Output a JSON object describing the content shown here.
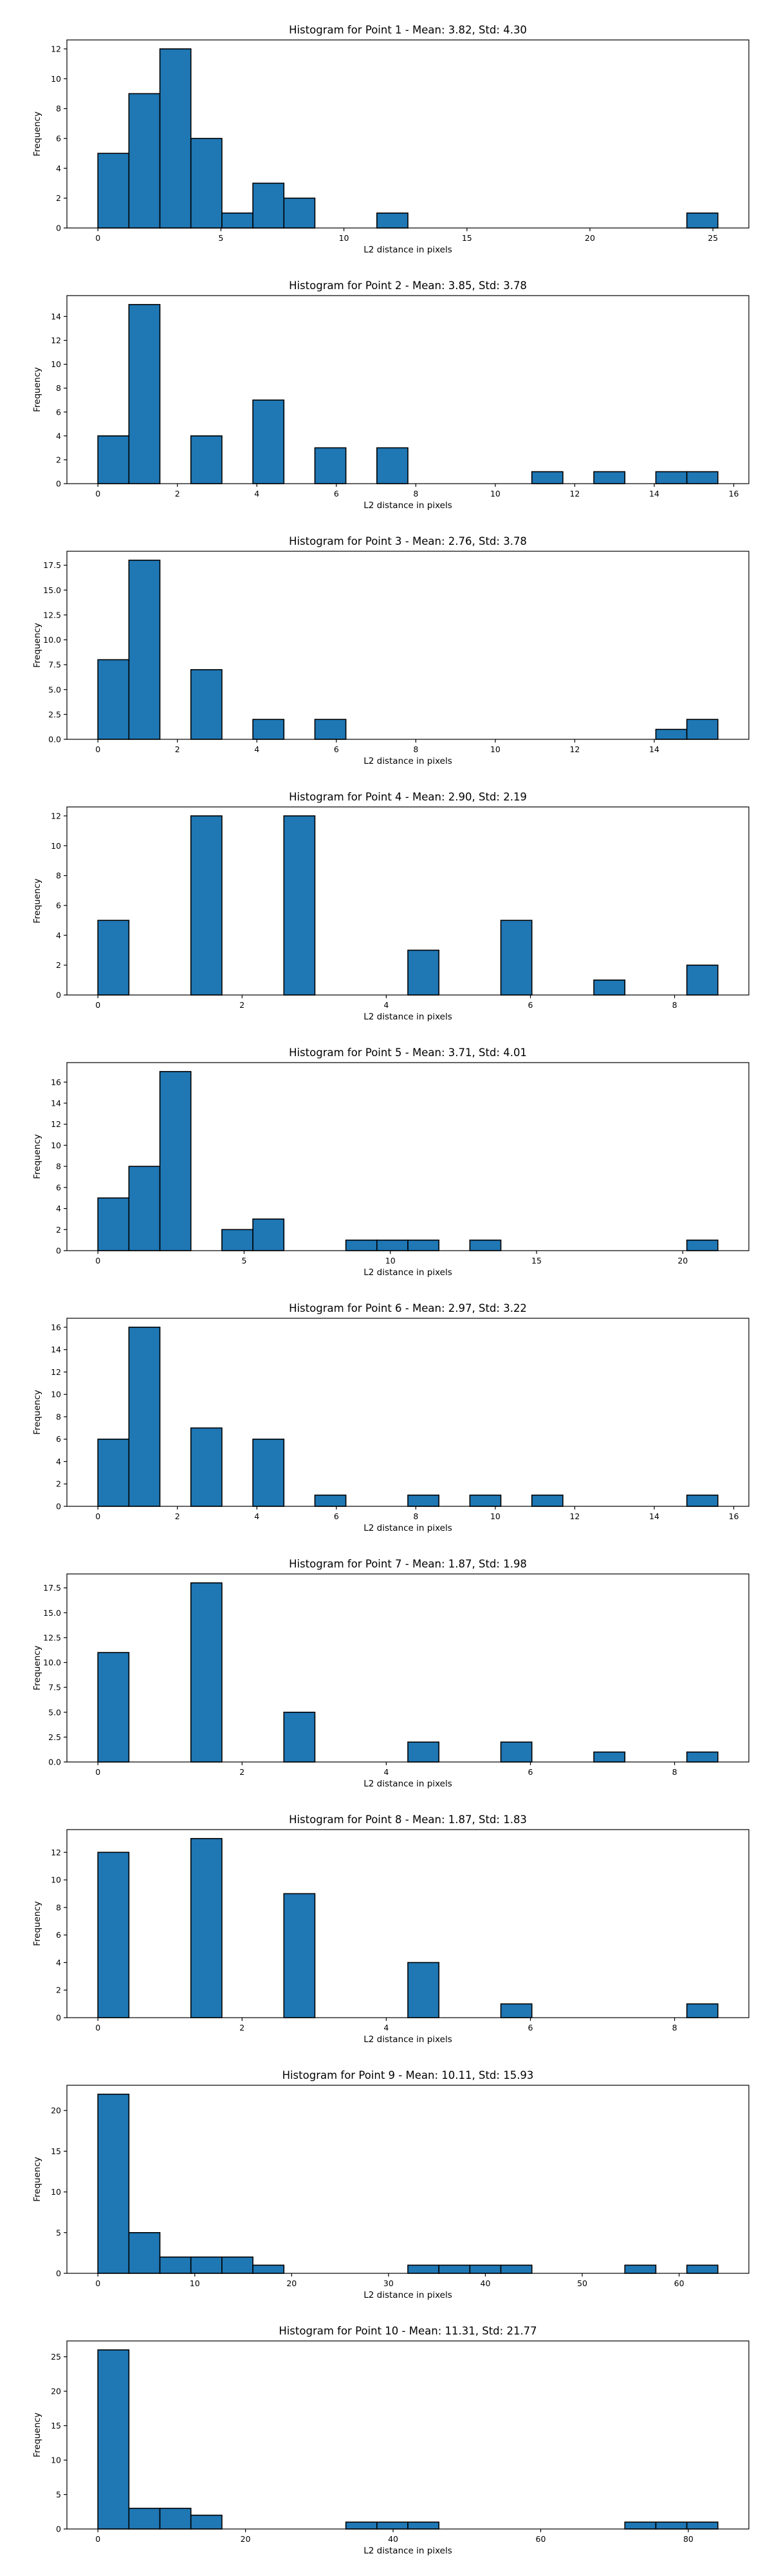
{
  "colors": {
    "bar": "#1f77b4",
    "edge": "#000000",
    "background": "#ffffff"
  },
  "chart_data": [
    {
      "type": "bar",
      "title": "Histogram for Point 1 - Mean: 3.82, Std: 4.30",
      "xlabel": "L2 distance in pixels",
      "ylabel": "Frequency",
      "bin_range": [
        0,
        25.2
      ],
      "bins": 20,
      "counts": [
        5,
        9,
        12,
        6,
        1,
        3,
        2,
        0,
        0,
        1,
        0,
        0,
        0,
        0,
        0,
        0,
        0,
        0,
        0,
        1
      ],
      "xlim": [
        -1.26,
        26.46
      ],
      "ylim": [
        0,
        12.6
      ],
      "xticks": [
        0,
        5,
        10,
        15,
        20,
        25
      ],
      "yticks": [
        0,
        2,
        4,
        6,
        8,
        10,
        12
      ],
      "grid": false
    },
    {
      "type": "bar",
      "title": "Histogram for Point 2 - Mean: 3.85, Std: 3.78",
      "xlabel": "L2 distance in pixels",
      "ylabel": "Frequency",
      "bin_range": [
        0,
        15.6
      ],
      "bins": 20,
      "counts": [
        4,
        15,
        0,
        4,
        0,
        7,
        0,
        3,
        0,
        3,
        0,
        0,
        0,
        0,
        1,
        0,
        1,
        0,
        1,
        1
      ],
      "xlim": [
        -0.78,
        16.38
      ],
      "ylim": [
        0,
        15.75
      ],
      "xticks": [
        0,
        2,
        4,
        6,
        8,
        10,
        12,
        14,
        16
      ],
      "yticks": [
        0,
        2,
        4,
        6,
        8,
        10,
        12,
        14
      ],
      "grid": false
    },
    {
      "type": "bar",
      "title": "Histogram for Point 3 - Mean: 2.76, Std: 3.78",
      "xlabel": "L2 distance in pixels",
      "ylabel": "Frequency",
      "bin_range": [
        0,
        15.6
      ],
      "bins": 20,
      "counts": [
        8,
        18,
        0,
        7,
        0,
        2,
        0,
        2,
        0,
        0,
        0,
        0,
        0,
        0,
        0,
        0,
        0,
        0,
        1,
        2
      ],
      "xlim": [
        -0.78,
        16.38
      ],
      "ylim": [
        0,
        18.9
      ],
      "xticks": [
        0,
        2,
        4,
        6,
        8,
        10,
        12,
        14
      ],
      "yticks": [
        0,
        2.5,
        5,
        7.5,
        10,
        12.5,
        15,
        17.5
      ],
      "ytick_labels": [
        "0.0",
        "2.5",
        "5.0",
        "7.5",
        "10.0",
        "12.5",
        "15.0",
        "17.5"
      ],
      "grid": false
    },
    {
      "type": "bar",
      "title": "Histogram for Point 4 - Mean: 2.90, Std: 2.19",
      "xlabel": "L2 distance in pixels",
      "ylabel": "Frequency",
      "bin_range": [
        0,
        8.6
      ],
      "bins": 20,
      "counts": [
        5,
        0,
        0,
        12,
        0,
        0,
        12,
        0,
        0,
        0,
        3,
        0,
        0,
        5,
        0,
        0,
        1,
        0,
        0,
        2
      ],
      "xlim": [
        -0.43,
        9.03
      ],
      "ylim": [
        0,
        12.6
      ],
      "xticks": [
        0,
        2,
        4,
        6,
        8
      ],
      "yticks": [
        0,
        2,
        4,
        6,
        8,
        10,
        12
      ],
      "grid": false
    },
    {
      "type": "bar",
      "title": "Histogram for Point 5 - Mean: 3.71, Std: 4.01",
      "xlabel": "L2 distance in pixels",
      "ylabel": "Frequency",
      "bin_range": [
        0,
        21.2
      ],
      "bins": 20,
      "counts": [
        5,
        8,
        17,
        0,
        2,
        3,
        0,
        0,
        1,
        1,
        1,
        0,
        1,
        0,
        0,
        0,
        0,
        0,
        0,
        1
      ],
      "xlim": [
        -1.06,
        22.26
      ],
      "ylim": [
        0,
        17.85
      ],
      "xticks": [
        0,
        5,
        10,
        15,
        20
      ],
      "yticks": [
        0,
        2,
        4,
        6,
        8,
        10,
        12,
        14,
        16
      ],
      "grid": false
    },
    {
      "type": "bar",
      "title": "Histogram for Point 6 - Mean: 2.97, Std: 3.22",
      "xlabel": "L2 distance in pixels",
      "ylabel": "Frequency",
      "bin_range": [
        0,
        15.6
      ],
      "bins": 20,
      "counts": [
        6,
        16,
        0,
        7,
        0,
        6,
        0,
        1,
        0,
        0,
        1,
        0,
        1,
        0,
        1,
        0,
        0,
        0,
        0,
        1
      ],
      "xlim": [
        -0.78,
        16.38
      ],
      "ylim": [
        0,
        16.8
      ],
      "xticks": [
        0,
        2,
        4,
        6,
        8,
        10,
        12,
        14,
        16
      ],
      "yticks": [
        0,
        2,
        4,
        6,
        8,
        10,
        12,
        14,
        16
      ],
      "grid": false
    },
    {
      "type": "bar",
      "title": "Histogram for Point 7 - Mean: 1.87, Std: 1.98",
      "xlabel": "L2 distance in pixels",
      "ylabel": "Frequency",
      "bin_range": [
        0,
        8.6
      ],
      "bins": 20,
      "counts": [
        11,
        0,
        0,
        18,
        0,
        0,
        5,
        0,
        0,
        0,
        2,
        0,
        0,
        2,
        0,
        0,
        1,
        0,
        0,
        1
      ],
      "xlim": [
        -0.43,
        9.03
      ],
      "ylim": [
        0,
        18.9
      ],
      "xticks": [
        0,
        2,
        4,
        6,
        8
      ],
      "yticks": [
        0,
        2.5,
        5,
        7.5,
        10,
        12.5,
        15,
        17.5
      ],
      "ytick_labels": [
        "0.0",
        "2.5",
        "5.0",
        "7.5",
        "10.0",
        "12.5",
        "15.0",
        "17.5"
      ],
      "grid": false
    },
    {
      "type": "bar",
      "title": "Histogram for Point 8 - Mean: 1.87, Std: 1.83",
      "xlabel": "L2 distance in pixels",
      "ylabel": "Frequency",
      "bin_range": [
        0,
        8.6
      ],
      "bins": 20,
      "counts": [
        12,
        0,
        0,
        13,
        0,
        0,
        9,
        0,
        0,
        0,
        4,
        0,
        0,
        1,
        0,
        0,
        0,
        0,
        0,
        1
      ],
      "xlim": [
        -0.43,
        9.03
      ],
      "ylim": [
        0,
        13.65
      ],
      "xticks": [
        0,
        2,
        4,
        6,
        8
      ],
      "yticks": [
        0,
        2,
        4,
        6,
        8,
        10,
        12
      ],
      "grid": false
    },
    {
      "type": "bar",
      "title": "Histogram for Point 9 - Mean: 10.11, Std: 15.93",
      "xlabel": "L2 distance in pixels",
      "ylabel": "Frequency",
      "bin_range": [
        0,
        64
      ],
      "bins": 20,
      "counts": [
        22,
        5,
        2,
        2,
        2,
        1,
        0,
        0,
        0,
        0,
        1,
        1,
        1,
        1,
        0,
        0,
        0,
        1,
        0,
        1
      ],
      "xlim": [
        -3.2,
        67.2
      ],
      "ylim": [
        0,
        23.1
      ],
      "xticks": [
        0,
        10,
        20,
        30,
        40,
        50,
        60
      ],
      "yticks": [
        0,
        5,
        10,
        15,
        20
      ],
      "grid": false
    },
    {
      "type": "bar",
      "title": "Histogram for Point 10 - Mean: 11.31, Std: 21.77",
      "xlabel": "L2 distance in pixels",
      "ylabel": "Frequency",
      "bin_range": [
        0,
        84
      ],
      "bins": 20,
      "counts": [
        26,
        3,
        3,
        2,
        0,
        0,
        0,
        0,
        1,
        1,
        1,
        0,
        0,
        0,
        0,
        0,
        0,
        1,
        1,
        1
      ],
      "xlim": [
        -4.2,
        88.2
      ],
      "ylim": [
        0,
        27.3
      ],
      "xticks": [
        0,
        20,
        40,
        60,
        80
      ],
      "yticks": [
        0,
        5,
        10,
        15,
        20,
        25
      ],
      "grid": false
    }
  ]
}
